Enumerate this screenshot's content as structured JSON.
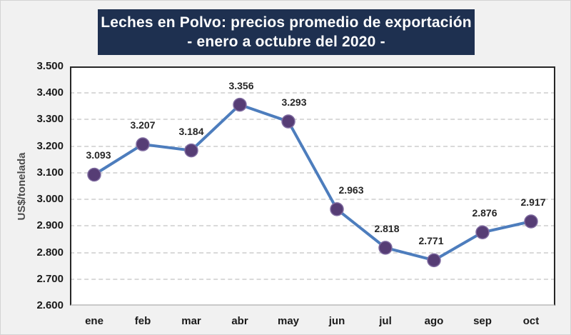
{
  "page": {
    "background": "#f1f1f1",
    "border_color": "#d4d4d4"
  },
  "title": {
    "line1": "Leches en Polvo: precios promedio de exportación",
    "line2": "- enero a octubre del 2020 -",
    "background": "#1e3050",
    "color": "#ffffff"
  },
  "chart_data": {
    "type": "line",
    "title": "Leches en Polvo: precios promedio de exportación - enero a octubre del 2020 -",
    "categories": [
      "ene",
      "feb",
      "mar",
      "abr",
      "may",
      "jun",
      "jul",
      "ago",
      "sep",
      "oct"
    ],
    "values": [
      3.093,
      3.207,
      3.184,
      3.356,
      3.293,
      2.963,
      2.818,
      2.771,
      2.876,
      2.917
    ],
    "data_labels": [
      "3.093",
      "3.207",
      "3.184",
      "3.356",
      "3.293",
      "2.963",
      "2.818",
      "2.771",
      "2.876",
      "2.917"
    ],
    "xlabel": "",
    "ylabel": "US$/tonelada",
    "ylim": [
      2.6,
      3.5
    ],
    "ytick_step": 0.1,
    "ytick_labels": [
      "3.500",
      "3.400",
      "3.300",
      "3.200",
      "3.100",
      "3.000",
      "2.900",
      "2.800",
      "2.700",
      "2.600"
    ],
    "grid": true,
    "grid_style": "dashed",
    "legend": false,
    "line_color": "#4d7dbd",
    "marker_fill": "#563d75",
    "marker_stroke": "#7f6ba0",
    "plot_background": "#ffffff",
    "plot_border_color": "#262626",
    "axis_line_color": "#c9c9c9",
    "gridline_color": "#d9d9d9"
  }
}
